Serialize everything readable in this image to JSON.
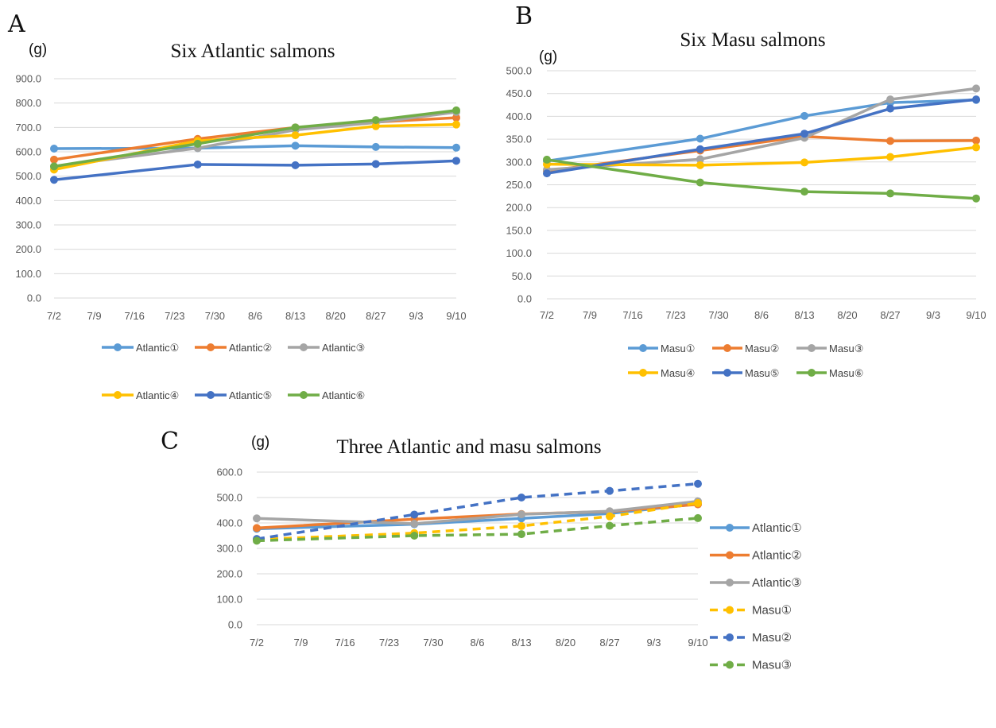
{
  "colors": {
    "blue": "#5b9bd5",
    "orange": "#ed7d31",
    "gray": "#a5a5a5",
    "yellow": "#ffc000",
    "darkblue": "#4472c4",
    "green": "#70ad47"
  },
  "chart_data": [
    {
      "type": "line",
      "panel": "A",
      "title": "Six Atlantic salmons",
      "ylabel": "(g)",
      "xlabel": "",
      "x_ticks": [
        "7/2",
        "7/9",
        "7/16",
        "7/23",
        "7/30",
        "8/6",
        "8/13",
        "8/20",
        "8/27",
        "9/3",
        "9/10"
      ],
      "ylim": [
        0,
        900
      ],
      "y_ticks": [
        "0.0",
        "100.0",
        "200.0",
        "300.0",
        "400.0",
        "500.0",
        "600.0",
        "700.0",
        "800.0",
        "900.0"
      ],
      "grid": true,
      "legend_position": "bottom",
      "series": [
        {
          "name": "Atlantic①",
          "color": "#5b9bd5",
          "dashed": false,
          "x": [
            "7/2",
            "7/27",
            "8/13",
            "8/27",
            "9/10"
          ],
          "values": [
            613,
            615,
            625,
            620,
            617
          ]
        },
        {
          "name": "Atlantic②",
          "color": "#ed7d31",
          "dashed": false,
          "x": [
            "7/2",
            "7/27",
            "8/13",
            "8/27",
            "9/10"
          ],
          "values": [
            568,
            653,
            700,
            722,
            740
          ]
        },
        {
          "name": "Atlantic③",
          "color": "#a5a5a5",
          "dashed": false,
          "x": [
            "7/2",
            "7/27",
            "8/13",
            "8/27",
            "9/10"
          ],
          "values": [
            540,
            615,
            690,
            720,
            763
          ]
        },
        {
          "name": "Atlantic④",
          "color": "#ffc000",
          "dashed": false,
          "x": [
            "7/2",
            "7/27",
            "8/13",
            "8/27",
            "9/10"
          ],
          "values": [
            527,
            645,
            668,
            705,
            712
          ]
        },
        {
          "name": "Atlantic⑤",
          "color": "#4472c4",
          "dashed": false,
          "x": [
            "7/2",
            "7/27",
            "8/13",
            "8/27",
            "9/10"
          ],
          "values": [
            485,
            548,
            545,
            550,
            563
          ]
        },
        {
          "name": "Atlantic⑥",
          "color": "#70ad47",
          "dashed": false,
          "x": [
            "7/2",
            "7/27",
            "8/13",
            "8/27",
            "9/10"
          ],
          "values": [
            540,
            633,
            700,
            730,
            770
          ]
        }
      ]
    },
    {
      "type": "line",
      "panel": "B",
      "title": "Six Masu salmons",
      "ylabel": "(g)",
      "xlabel": "",
      "x_ticks": [
        "7/2",
        "7/9",
        "7/16",
        "7/23",
        "7/30",
        "8/6",
        "8/13",
        "8/20",
        "8/27",
        "9/3",
        "9/10"
      ],
      "ylim": [
        0,
        500
      ],
      "y_ticks": [
        "0.0",
        "50.0",
        "100.0",
        "150.0",
        "200.0",
        "250.0",
        "300.0",
        "350.0",
        "400.0",
        "450.0",
        "500.0"
      ],
      "grid": true,
      "legend_position": "bottom",
      "series": [
        {
          "name": "Masu①",
          "color": "#5b9bd5",
          "dashed": false,
          "x": [
            "7/2",
            "7/27",
            "8/13",
            "8/27",
            "9/10"
          ],
          "values": [
            302,
            351,
            401,
            430,
            436
          ]
        },
        {
          "name": "Masu②",
          "color": "#ed7d31",
          "dashed": false,
          "x": [
            "7/2",
            "7/27",
            "8/13",
            "8/27",
            "9/10"
          ],
          "values": [
            280,
            325,
            356,
            346,
            347
          ]
        },
        {
          "name": "Masu③",
          "color": "#a5a5a5",
          "dashed": false,
          "x": [
            "7/2",
            "7/27",
            "8/13",
            "8/27",
            "9/10"
          ],
          "values": [
            283,
            306,
            353,
            437,
            461
          ]
        },
        {
          "name": "Masu④",
          "color": "#ffc000",
          "dashed": false,
          "x": [
            "7/2",
            "7/27",
            "8/13",
            "8/27",
            "9/10"
          ],
          "values": [
            295,
            293,
            299,
            311,
            332
          ]
        },
        {
          "name": "Masu⑤",
          "color": "#4472c4",
          "dashed": false,
          "x": [
            "7/2",
            "7/27",
            "8/13",
            "8/27",
            "9/10"
          ],
          "values": [
            275,
            328,
            362,
            417,
            437
          ]
        },
        {
          "name": "Masu⑥",
          "color": "#70ad47",
          "dashed": false,
          "x": [
            "7/2",
            "7/27",
            "8/13",
            "8/27",
            "9/10"
          ],
          "values": [
            305,
            255,
            235,
            231,
            220
          ]
        }
      ]
    },
    {
      "type": "line",
      "panel": "C",
      "title": "Three Atlantic and masu salmons",
      "ylabel": "(g)",
      "xlabel": "",
      "x_ticks": [
        "7/2",
        "7/9",
        "7/16",
        "7/23",
        "7/30",
        "8/6",
        "8/13",
        "8/20",
        "8/27",
        "9/3",
        "9/10"
      ],
      "ylim": [
        0,
        600
      ],
      "y_ticks": [
        "0.0",
        "100.0",
        "200.0",
        "300.0",
        "400.0",
        "500.0",
        "600.0"
      ],
      "grid": true,
      "legend_position": "right",
      "series": [
        {
          "name": "Atlantic①",
          "color": "#5b9bd5",
          "dashed": false,
          "x": [
            "7/2",
            "7/27",
            "8/13",
            "8/27",
            "9/10"
          ],
          "values": [
            377,
            395,
            418,
            437,
            475
          ]
        },
        {
          "name": "Atlantic②",
          "color": "#ed7d31",
          "dashed": false,
          "x": [
            "7/2",
            "7/27",
            "8/13",
            "8/27",
            "9/10"
          ],
          "values": [
            380,
            415,
            435,
            445,
            473
          ]
        },
        {
          "name": "Atlantic③",
          "color": "#a5a5a5",
          "dashed": false,
          "x": [
            "7/2",
            "7/27",
            "8/13",
            "8/27",
            "9/10"
          ],
          "values": [
            418,
            397,
            434,
            446,
            485
          ]
        },
        {
          "name": "Masu①",
          "color": "#ffc000",
          "dashed": true,
          "x": [
            "7/2",
            "7/27",
            "8/13",
            "8/27",
            "9/10"
          ],
          "values": [
            335,
            360,
            388,
            426,
            478
          ]
        },
        {
          "name": "Masu②",
          "color": "#4472c4",
          "dashed": true,
          "x": [
            "7/2",
            "7/27",
            "8/13",
            "8/27",
            "9/10"
          ],
          "values": [
            337,
            433,
            500,
            526,
            554
          ]
        },
        {
          "name": "Masu③",
          "color": "#70ad47",
          "dashed": true,
          "x": [
            "7/2",
            "7/27",
            "8/13",
            "8/27",
            "9/10"
          ],
          "values": [
            330,
            350,
            356,
            389,
            419
          ]
        }
      ]
    }
  ]
}
